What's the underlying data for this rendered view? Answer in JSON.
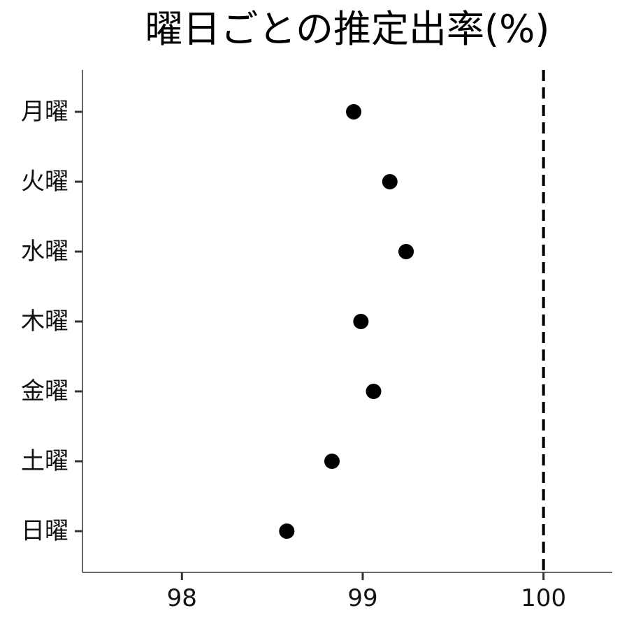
{
  "chart_data": {
    "type": "scatter",
    "title": "曜日ごとの推定出率(%)",
    "xlabel": "",
    "ylabel": "",
    "categories": [
      "月曜",
      "火曜",
      "水曜",
      "木曜",
      "金曜",
      "土曜",
      "日曜"
    ],
    "values": [
      98.95,
      99.15,
      99.24,
      98.99,
      99.06,
      98.83,
      98.58
    ],
    "xlim": [
      97.45,
      100.38
    ],
    "xticks": [
      98,
      99,
      100
    ],
    "xtick_labels": [
      "98",
      "99",
      "100"
    ],
    "reference_line": {
      "x": 100,
      "style": "dashed"
    },
    "grid": false,
    "legend": "none",
    "colors": {
      "point": "#000000",
      "axis": "#333333",
      "reference": "#000000"
    }
  }
}
